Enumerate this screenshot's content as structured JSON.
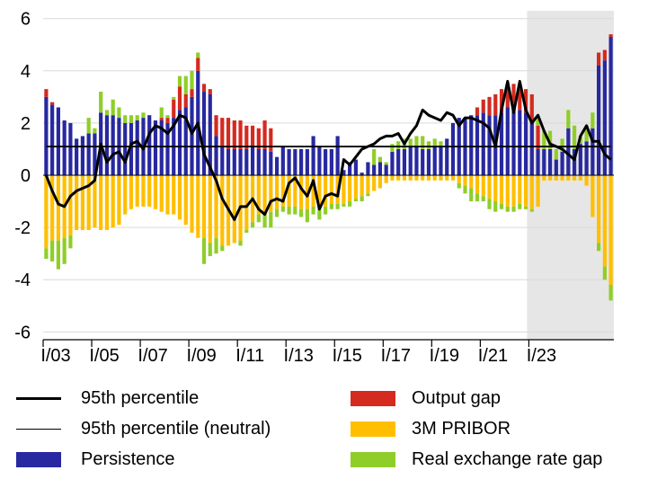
{
  "chart_data": {
    "type": "bar",
    "title": "",
    "xlabel": "",
    "ylabel": "",
    "ylim": [
      -6.3,
      6.3
    ],
    "y_ticks": [
      -6,
      -4,
      -2,
      0,
      2,
      4,
      6
    ],
    "x_start": "2003Q1",
    "x_tick_labels": [
      "I/03",
      "I/05",
      "I/07",
      "I/09",
      "I/11",
      "I/13",
      "I/15",
      "I/17",
      "I/19",
      "I/21",
      "I/23"
    ],
    "forecast_shaded_from": "2023Q1",
    "grid": true,
    "legend_placement": "bottom",
    "stacked": true,
    "series": [
      {
        "name": "Persistence",
        "color": "#2828a0",
        "values": [
          3.0,
          2.7,
          2.6,
          2.1,
          2.0,
          1.4,
          1.5,
          1.6,
          1.6,
          2.4,
          2.3,
          2.3,
          2.2,
          2.0,
          2.0,
          2.1,
          2.2,
          2.3,
          2.1,
          2.1,
          2.0,
          2.2,
          2.5,
          2.6,
          3.0,
          4.0,
          3.2,
          3.1,
          1.5,
          1.1,
          1.0,
          1.0,
          1.0,
          1.0,
          1.1,
          1.0,
          1.0,
          0.9,
          0.7,
          1.1,
          1.0,
          1.0,
          1.0,
          1.0,
          1.5,
          1.1,
          1.0,
          1.0,
          1.5,
          0.2,
          0.5,
          0.6,
          0.1,
          0.5,
          0.4,
          0.5,
          0.4,
          0.9,
          1.0,
          1.0,
          1.1,
          1.1,
          1.0,
          1.0,
          1.1,
          1.1,
          1.4,
          2.0,
          2.2,
          2.2,
          2.3,
          2.3,
          2.4,
          2.3,
          2.3,
          2.4,
          2.6,
          2.6,
          2.5,
          2.4,
          2.1,
          1.0,
          1.0,
          1.0,
          0.6,
          0.9,
          1.8,
          1.0,
          1.2,
          1.3,
          1.8,
          4.2,
          4.4,
          5.3
        ]
      },
      {
        "name": "Output gap",
        "color": "#d42a20",
        "values": [
          0.3,
          0.1,
          0.0,
          0.0,
          0.0,
          0.0,
          0.0,
          0.0,
          0.0,
          0.0,
          0.0,
          0.0,
          0.0,
          0.0,
          0.0,
          0.0,
          0.0,
          0.0,
          0.0,
          0.1,
          0.2,
          0.7,
          0.9,
          0.5,
          0.3,
          0.5,
          0.3,
          0.2,
          0.8,
          1.1,
          1.2,
          1.1,
          1.1,
          0.9,
          0.8,
          0.8,
          1.1,
          0.9,
          0.0,
          0.0,
          0.0,
          0.0,
          0.0,
          0.0,
          0.0,
          0.0,
          0.0,
          0.0,
          0.0,
          0.0,
          0.0,
          0.0,
          0.0,
          0.0,
          0.0,
          0.0,
          0.0,
          0.0,
          0.0,
          0.0,
          0.0,
          0.0,
          0.0,
          0.0,
          0.0,
          0.0,
          0.0,
          0.0,
          0.0,
          0.0,
          0.0,
          0.3,
          0.5,
          0.7,
          0.8,
          0.9,
          0.9,
          0.9,
          0.8,
          0.9,
          1.0,
          0.9,
          0.0,
          0.0,
          0.0,
          0.0,
          0.0,
          0.0,
          0.0,
          0.0,
          0.0,
          0.5,
          0.4,
          0.1
        ]
      },
      {
        "name": "3M PRIBOR",
        "color": "#ffbf00",
        "values": [
          -2.8,
          -2.5,
          -2.5,
          -2.4,
          -2.3,
          -2.1,
          -2.1,
          -2.1,
          -2.0,
          -2.1,
          -2.1,
          -2.0,
          -1.9,
          -1.5,
          -1.3,
          -1.2,
          -1.2,
          -1.2,
          -1.3,
          -1.4,
          -1.5,
          -1.5,
          -1.7,
          -1.9,
          -2.2,
          -2.4,
          -2.4,
          -2.6,
          -2.4,
          -2.7,
          -2.7,
          -2.6,
          -2.5,
          -2.1,
          -1.8,
          -1.5,
          -1.5,
          -1.4,
          -1.3,
          -1.2,
          -1.2,
          -1.2,
          -1.3,
          -1.3,
          -1.2,
          -1.3,
          -1.2,
          -1.1,
          -1.1,
          -1.1,
          -1.0,
          -0.9,
          -0.8,
          -0.7,
          -0.6,
          -0.5,
          -0.3,
          -0.2,
          -0.2,
          -0.2,
          -0.2,
          -0.2,
          -0.2,
          -0.2,
          -0.2,
          -0.2,
          -0.2,
          -0.2,
          -0.3,
          -0.4,
          -0.5,
          -0.7,
          -0.8,
          -0.9,
          -1.0,
          -1.1,
          -1.2,
          -1.2,
          -1.1,
          -1.2,
          -1.3,
          -1.2,
          -0.2,
          -0.2,
          -0.2,
          -0.2,
          -0.2,
          -0.2,
          -0.2,
          -0.4,
          -1.6,
          -2.6,
          -3.5,
          -4.2
        ]
      },
      {
        "name": "Real exchange rate gap",
        "color": "#8fce29",
        "values": [
          -0.4,
          -0.8,
          -1.1,
          -1.0,
          -0.5,
          0.0,
          0.0,
          0.6,
          0.2,
          0.8,
          0.2,
          0.6,
          0.4,
          0.3,
          0.3,
          0.2,
          0.2,
          0.0,
          0.0,
          0.4,
          0.1,
          0.1,
          0.4,
          0.7,
          0.7,
          0.2,
          -1.0,
          -0.5,
          -0.6,
          -0.2,
          0.0,
          0.0,
          -0.2,
          -0.1,
          -0.2,
          -0.3,
          -0.5,
          -0.6,
          -0.3,
          -0.2,
          -0.3,
          -0.3,
          -0.3,
          -0.5,
          -0.3,
          -0.4,
          -0.3,
          -0.2,
          -0.2,
          -0.1,
          -0.2,
          -0.1,
          -0.2,
          -0.1,
          0.6,
          0.2,
          0.1,
          0.3,
          0.3,
          0.4,
          0.3,
          0.4,
          0.5,
          0.3,
          0.3,
          0.2,
          0.0,
          0.0,
          -0.2,
          -0.3,
          -0.5,
          -0.3,
          -0.2,
          -0.4,
          -0.4,
          -0.2,
          -0.2,
          -0.2,
          -0.2,
          -0.1,
          -0.1,
          0.3,
          0.7,
          0.7,
          0.4,
          0.5,
          0.7,
          0.9,
          0.3,
          0.6,
          0.6,
          -0.3,
          -0.5,
          -0.6
        ]
      }
    ],
    "lines": [
      {
        "name": "95th percentile",
        "color": "#000000",
        "values": [
          0.0,
          -0.6,
          -1.1,
          -1.2,
          -0.8,
          -0.6,
          -0.5,
          -0.4,
          -0.2,
          1.2,
          0.5,
          0.8,
          0.9,
          0.5,
          1.2,
          1.3,
          1.0,
          1.6,
          1.9,
          1.8,
          1.6,
          1.9,
          2.3,
          2.2,
          1.6,
          2.0,
          0.8,
          0.3,
          -0.2,
          -0.9,
          -1.3,
          -1.7,
          -1.2,
          -1.2,
          -0.9,
          -1.3,
          -1.5,
          -1.0,
          -0.9,
          -1.0,
          -0.3,
          -0.1,
          -0.5,
          -0.8,
          -0.2,
          -1.3,
          -0.8,
          -0.7,
          -0.8,
          0.6,
          0.4,
          0.7,
          1.0,
          1.1,
          1.2,
          1.4,
          1.5,
          1.5,
          1.6,
          1.2,
          1.6,
          1.9,
          2.5,
          2.3,
          2.2,
          2.1,
          2.4,
          2.3,
          1.9,
          2.2,
          2.2,
          2.1,
          2.0,
          1.8,
          1.1,
          2.5,
          3.6,
          2.4,
          3.6,
          2.5,
          2.0,
          2.3,
          1.7,
          1.2,
          1.1,
          1.0,
          0.8,
          0.6,
          1.5,
          1.9,
          1.3,
          1.3,
          0.8,
          0.6
        ]
      },
      {
        "name": "95th percentile (neutral)",
        "color": "#000000",
        "values": [
          1.1,
          1.1,
          1.1,
          1.1,
          1.1,
          1.1,
          1.1,
          1.1,
          1.1,
          1.1,
          1.1,
          1.1,
          1.1,
          1.1,
          1.1,
          1.1,
          1.1,
          1.1,
          1.1,
          1.1,
          1.1,
          1.1,
          1.1,
          1.1,
          1.1,
          1.1,
          1.1,
          1.1,
          1.1,
          1.1,
          1.1,
          1.1,
          1.1,
          1.1,
          1.1,
          1.1,
          1.1,
          1.1,
          1.1,
          1.1,
          1.1,
          1.1,
          1.1,
          1.1,
          1.1,
          1.1,
          1.1,
          1.1,
          1.1,
          1.1,
          1.1,
          1.1,
          1.1,
          1.1,
          1.1,
          1.1,
          1.1,
          1.1,
          1.1,
          1.1,
          1.1,
          1.1,
          1.1,
          1.1,
          1.1,
          1.1,
          1.1,
          1.1,
          1.1,
          1.1,
          1.1,
          1.1,
          1.1,
          1.1,
          1.1,
          1.1,
          1.1,
          1.1,
          1.1,
          1.1,
          1.1,
          1.1,
          1.1,
          1.1,
          1.1,
          1.1,
          1.1,
          1.1,
          1.1,
          1.1,
          1.1,
          1.1,
          1.1,
          1.1
        ]
      }
    ]
  },
  "legend": [
    {
      "label": "95th percentile",
      "kind": "line-thick",
      "color": "#000000"
    },
    {
      "label": "95th percentile (neutral)",
      "kind": "line-thin",
      "color": "#000000"
    },
    {
      "label": "Persistence",
      "kind": "box",
      "color": "#2828a0"
    },
    {
      "label": "Output gap",
      "kind": "box",
      "color": "#d42a20"
    },
    {
      "label": "3M PRIBOR",
      "kind": "box",
      "color": "#ffbf00"
    },
    {
      "label": "Real exchange rate gap",
      "kind": "box",
      "color": "#8fce29"
    }
  ]
}
